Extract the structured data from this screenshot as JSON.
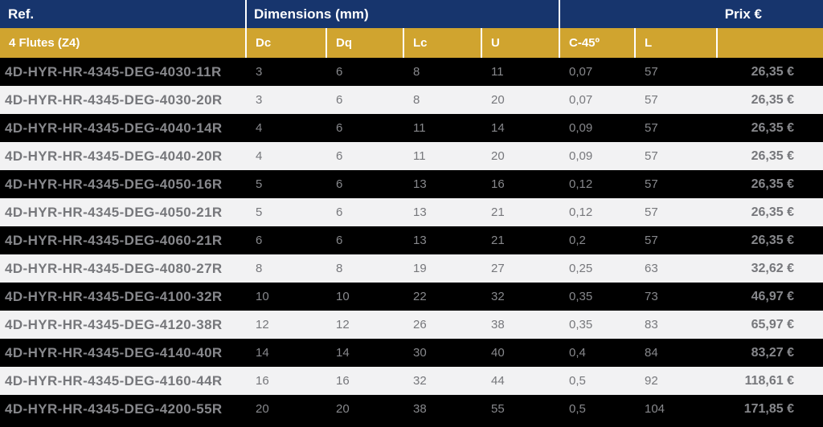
{
  "colors": {
    "navy": "#17356d",
    "gold": "#d0a42f",
    "row_dark": "#000000",
    "row_light": "#f2f2f3",
    "text_gray": "#7d7e82"
  },
  "table": {
    "header": {
      "ref_label": "Ref.",
      "dimensions_label": "Dimensions (mm)",
      "price_label": "Prix €"
    },
    "subheader": {
      "flutes_label": "4 Flutes (Z4)",
      "columns": [
        "Dc",
        "Dq",
        "Lc",
        "U",
        "C-45º",
        "L"
      ]
    },
    "rows": [
      {
        "ref": "4D-HYR-HR-4345-DEG-4030-11R",
        "dc": "3",
        "dq": "6",
        "lc": "8",
        "u": "11",
        "c45": "0,07",
        "l": "57",
        "price": "26,35 €"
      },
      {
        "ref": "4D-HYR-HR-4345-DEG-4030-20R",
        "dc": "3",
        "dq": "6",
        "lc": "8",
        "u": "20",
        "c45": "0,07",
        "l": "57",
        "price": "26,35 €"
      },
      {
        "ref": "4D-HYR-HR-4345-DEG-4040-14R",
        "dc": "4",
        "dq": "6",
        "lc": "11",
        "u": "14",
        "c45": "0,09",
        "l": "57",
        "price": "26,35 €"
      },
      {
        "ref": "4D-HYR-HR-4345-DEG-4040-20R",
        "dc": "4",
        "dq": "6",
        "lc": "11",
        "u": "20",
        "c45": "0,09",
        "l": "57",
        "price": "26,35 €"
      },
      {
        "ref": "4D-HYR-HR-4345-DEG-4050-16R",
        "dc": "5",
        "dq": "6",
        "lc": "13",
        "u": "16",
        "c45": "0,12",
        "l": "57",
        "price": "26,35 €"
      },
      {
        "ref": "4D-HYR-HR-4345-DEG-4050-21R",
        "dc": "5",
        "dq": "6",
        "lc": "13",
        "u": "21",
        "c45": "0,12",
        "l": "57",
        "price": "26,35 €"
      },
      {
        "ref": "4D-HYR-HR-4345-DEG-4060-21R",
        "dc": "6",
        "dq": "6",
        "lc": "13",
        "u": "21",
        "c45": "0,2",
        "l": "57",
        "price": "26,35 €"
      },
      {
        "ref": "4D-HYR-HR-4345-DEG-4080-27R",
        "dc": "8",
        "dq": "8",
        "lc": "19",
        "u": "27",
        "c45": "0,25",
        "l": "63",
        "price": "32,62 €"
      },
      {
        "ref": "4D-HYR-HR-4345-DEG-4100-32R",
        "dc": "10",
        "dq": "10",
        "lc": "22",
        "u": "32",
        "c45": "0,35",
        "l": "73",
        "price": "46,97 €"
      },
      {
        "ref": "4D-HYR-HR-4345-DEG-4120-38R",
        "dc": "12",
        "dq": "12",
        "lc": "26",
        "u": "38",
        "c45": "0,35",
        "l": "83",
        "price": "65,97 €"
      },
      {
        "ref": "4D-HYR-HR-4345-DEG-4140-40R",
        "dc": "14",
        "dq": "14",
        "lc": "30",
        "u": "40",
        "c45": "0,4",
        "l": "84",
        "price": "83,27 €"
      },
      {
        "ref": "4D-HYR-HR-4345-DEG-4160-44R",
        "dc": "16",
        "dq": "16",
        "lc": "32",
        "u": "44",
        "c45": "0,5",
        "l": "92",
        "price": "118,61 €"
      },
      {
        "ref": "4D-HYR-HR-4345-DEG-4200-55R",
        "dc": "20",
        "dq": "20",
        "lc": "38",
        "u": "55",
        "c45": "0,5",
        "l": "104",
        "price": "171,85 €"
      }
    ]
  }
}
